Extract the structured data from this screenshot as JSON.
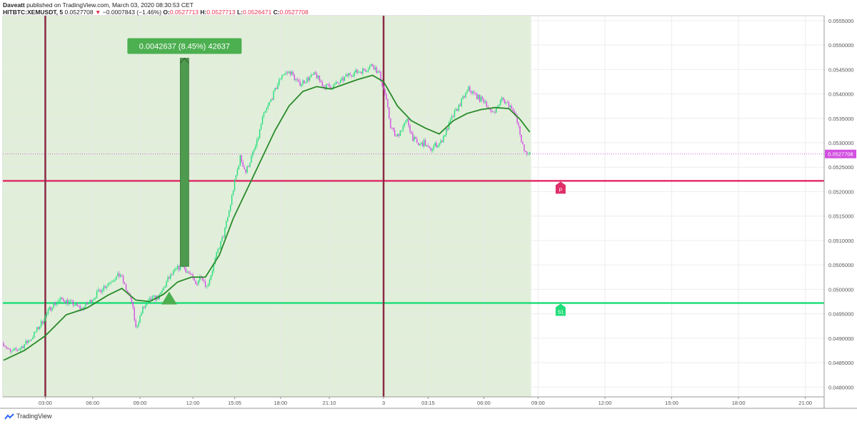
{
  "header": {
    "publisher": "Daveatt",
    "published_text": " published on TradingView.com, March 03, 2020 08:30:53 CET",
    "symbol": "HITBTC:XEMUSDT, 5",
    "last": "0.0527708",
    "change": "−0.0007843 (−1.46%)",
    "o_label": "O:",
    "o": "0.0527713",
    "h_label": "H:",
    "h": "0.0527713",
    "l_label": "L:",
    "l": "0.0526471",
    "c_label": "C:",
    "c": "0.0527708"
  },
  "footer": {
    "brand": "TradingView",
    "logo_icon": "tradingview-logo-icon"
  },
  "colors": {
    "bull": "#22dd7a",
    "bear": "#d24fe0",
    "ma": "#2a8a2a",
    "shade": "#e1efda",
    "pivot": "#e0306a",
    "support": "#22dd7a",
    "vline": "#8a2a45",
    "measure": "#4e9a4e"
  },
  "chart_data": {
    "type": "candlestick",
    "symbol": "HITBTC:XEMUSDT",
    "interval": "5",
    "ylim": [
      0.0478,
      0.0556
    ],
    "y_ticks": [
      "0.0480000",
      "0.0485000",
      "0.0490000",
      "0.0495000",
      "0.0500000",
      "0.0505000",
      "0.0510000",
      "0.0515000",
      "0.0520000",
      "0.0525000",
      "0.0530000",
      "0.0535000",
      "0.0540000",
      "0.0545000",
      "0.0550000",
      "0.0555000"
    ],
    "x_ticks": [
      "03:00",
      "06:00",
      "09:00",
      "12:00",
      "15:05",
      "18:00",
      "21:10",
      "3",
      "03:15",
      "06:00",
      "09:00",
      "12:00",
      "15:00",
      "18:00",
      "21:00"
    ],
    "x_tick_index": [
      30,
      64,
      98,
      136,
      166,
      199,
      234,
      273,
      305,
      345,
      384,
      432,
      480,
      528,
      576
    ],
    "last_price_label": "0.0527708",
    "last_price": 0.0527708,
    "levels": [
      {
        "name": "P",
        "value": 0.05222
      },
      {
        "name": "S1",
        "value": 0.04972
      }
    ],
    "vertical_lines_index": [
      30,
      273
    ],
    "shaded_range_index": [
      0,
      378
    ],
    "measure": {
      "label": "0.0042637 (8.45%) 42637",
      "from": 0.05047,
      "to": 0.05473,
      "index": 130
    },
    "signal_marker": {
      "index": 119,
      "value": 0.04972,
      "shape": "triangle-up"
    },
    "ma_path": [
      [
        0,
        0.04855
      ],
      [
        15,
        0.04875
      ],
      [
        30,
        0.04905
      ],
      [
        45,
        0.04948
      ],
      [
        60,
        0.04962
      ],
      [
        75,
        0.04988
      ],
      [
        85,
        0.05002
      ],
      [
        95,
        0.04978
      ],
      [
        105,
        0.04975
      ],
      [
        115,
        0.0499
      ],
      [
        125,
        0.05015
      ],
      [
        135,
        0.05025
      ],
      [
        145,
        0.05025
      ],
      [
        155,
        0.0507
      ],
      [
        165,
        0.05145
      ],
      [
        175,
        0.05205
      ],
      [
        185,
        0.05265
      ],
      [
        195,
        0.05325
      ],
      [
        205,
        0.05375
      ],
      [
        215,
        0.05405
      ],
      [
        225,
        0.05415
      ],
      [
        235,
        0.0541
      ],
      [
        245,
        0.0542
      ],
      [
        255,
        0.0543
      ],
      [
        265,
        0.05438
      ],
      [
        273,
        0.05425
      ],
      [
        283,
        0.05375
      ],
      [
        293,
        0.05345
      ],
      [
        303,
        0.0533
      ],
      [
        313,
        0.05318
      ],
      [
        323,
        0.05345
      ],
      [
        333,
        0.0536
      ],
      [
        343,
        0.05368
      ],
      [
        353,
        0.05372
      ],
      [
        363,
        0.0537
      ],
      [
        371,
        0.05348
      ],
      [
        378,
        0.05322
      ]
    ],
    "price_path": [
      [
        0,
        0.0489
      ],
      [
        5,
        0.0487
      ],
      [
        12,
        0.0488
      ],
      [
        20,
        0.049
      ],
      [
        28,
        0.04935
      ],
      [
        35,
        0.04968
      ],
      [
        42,
        0.0498
      ],
      [
        50,
        0.0497
      ],
      [
        56,
        0.0496
      ],
      [
        62,
        0.04975
      ],
      [
        70,
        0.05
      ],
      [
        78,
        0.0502
      ],
      [
        84,
        0.0503
      ],
      [
        88,
        0.05
      ],
      [
        92,
        0.04975
      ],
      [
        95,
        0.0492
      ],
      [
        100,
        0.0496
      ],
      [
        106,
        0.0498
      ],
      [
        112,
        0.04985
      ],
      [
        118,
        0.0502
      ],
      [
        124,
        0.0504
      ],
      [
        128,
        0.0505
      ],
      [
        134,
        0.0503
      ],
      [
        138,
        0.0501
      ],
      [
        142,
        0.0503
      ],
      [
        146,
        0.05005
      ],
      [
        150,
        0.0504
      ],
      [
        154,
        0.0508
      ],
      [
        158,
        0.0511
      ],
      [
        162,
        0.0516
      ],
      [
        166,
        0.0522
      ],
      [
        170,
        0.0527
      ],
      [
        174,
        0.0524
      ],
      [
        178,
        0.0527
      ],
      [
        182,
        0.053
      ],
      [
        186,
        0.0535
      ],
      [
        190,
        0.05375
      ],
      [
        194,
        0.054
      ],
      [
        200,
        0.0544
      ],
      [
        206,
        0.05445
      ],
      [
        212,
        0.0542
      ],
      [
        218,
        0.0543
      ],
      [
        224,
        0.0544
      ],
      [
        230,
        0.05415
      ],
      [
        236,
        0.05415
      ],
      [
        242,
        0.05425
      ],
      [
        248,
        0.0544
      ],
      [
        254,
        0.05445
      ],
      [
        260,
        0.0545
      ],
      [
        265,
        0.0546
      ],
      [
        270,
        0.0544
      ],
      [
        274,
        0.054
      ],
      [
        278,
        0.05335
      ],
      [
        282,
        0.0531
      ],
      [
        286,
        0.0533
      ],
      [
        290,
        0.05345
      ],
      [
        294,
        0.0531
      ],
      [
        298,
        0.05295
      ],
      [
        302,
        0.053
      ],
      [
        306,
        0.05285
      ],
      [
        310,
        0.05295
      ],
      [
        314,
        0.053
      ],
      [
        318,
        0.05325
      ],
      [
        322,
        0.0535
      ],
      [
        326,
        0.0537
      ],
      [
        330,
        0.0539
      ],
      [
        334,
        0.0541
      ],
      [
        338,
        0.054
      ],
      [
        342,
        0.0539
      ],
      [
        346,
        0.05385
      ],
      [
        350,
        0.0536
      ],
      [
        354,
        0.0537
      ],
      [
        358,
        0.0539
      ],
      [
        362,
        0.0538
      ],
      [
        366,
        0.0537
      ],
      [
        370,
        0.0533
      ],
      [
        374,
        0.0528
      ],
      [
        378,
        0.05277
      ]
    ]
  }
}
